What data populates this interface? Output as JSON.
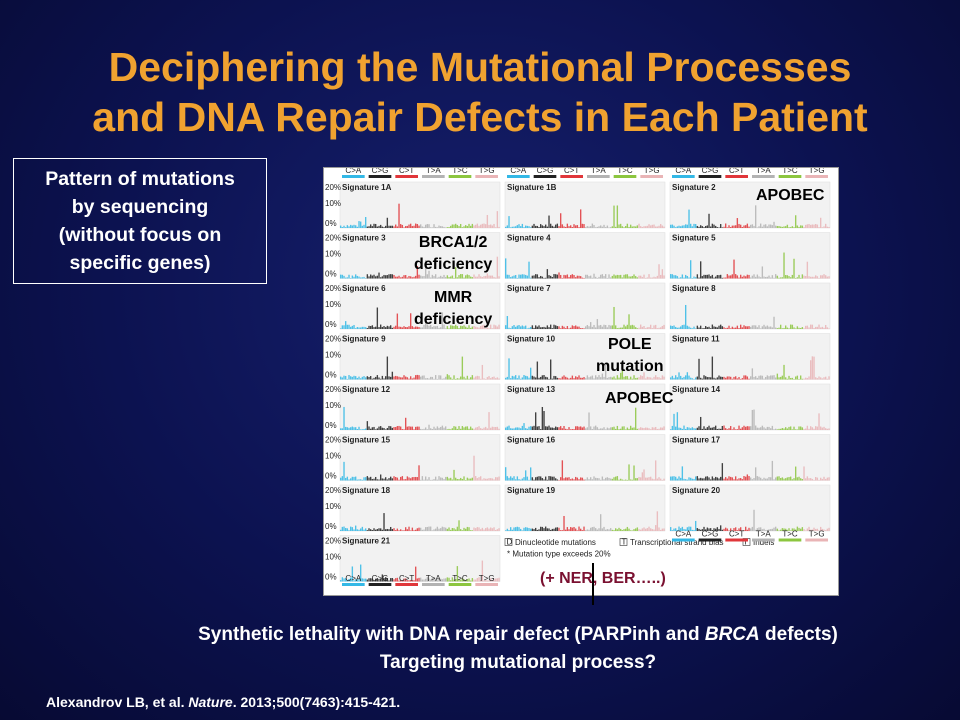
{
  "title": {
    "line1": "Deciphering the Mutational Processes",
    "line2": "and DNA Repair Defects in Each Patient"
  },
  "pattern_box": {
    "line1": "Pattern of mutations",
    "line2": "by sequencing",
    "line3": "(without focus on",
    "line4": "specific genes)"
  },
  "figure": {
    "mutation_classes": [
      "C>A",
      "C>G",
      "C>T",
      "T>A",
      "T>C",
      "T>G"
    ],
    "class_colors": [
      "#33b8e6",
      "#222222",
      "#e0363a",
      "#b3b3b3",
      "#8cc63f",
      "#e9b4b6"
    ],
    "y_ticks": [
      "20%",
      "10%",
      "0%"
    ],
    "signatures": [
      {
        "label": "Signature 1A",
        "tags": []
      },
      {
        "label": "Signature 1B",
        "tags": []
      },
      {
        "label": "Signature 2",
        "tags": []
      },
      {
        "label": "Signature 3",
        "tags": [
          "I"
        ]
      },
      {
        "label": "Signature 4",
        "tags": [
          "D",
          "T"
        ]
      },
      {
        "label": "Signature 5",
        "tags": [
          "D",
          "T"
        ]
      },
      {
        "label": "Signature 6",
        "tags": [
          "D"
        ]
      },
      {
        "label": "Signature 7",
        "tags": [
          "D",
          "T"
        ]
      },
      {
        "label": "Signature 8",
        "tags": [
          "T"
        ]
      },
      {
        "label": "Signature 9",
        "tags": []
      },
      {
        "label": "Signature 10",
        "tags": [
          "T"
        ]
      },
      {
        "label": "Signature 11",
        "tags": []
      },
      {
        "label": "Signature 12",
        "tags": [
          "T"
        ]
      },
      {
        "label": "Signature 13",
        "tags": []
      },
      {
        "label": "Signature 14",
        "tags": []
      },
      {
        "label": "Signature 15",
        "tags": [
          "I"
        ]
      },
      {
        "label": "Signature 16",
        "tags": [
          "T"
        ]
      },
      {
        "label": "Signature 17",
        "tags": []
      },
      {
        "label": "Signature 18",
        "tags": []
      },
      {
        "label": "Signature 19",
        "tags": []
      },
      {
        "label": "Signature 20",
        "tags": []
      },
      {
        "label": "Signature 21",
        "tags": []
      }
    ],
    "legend": {
      "dinucleotide": "Dinucleotide mutations",
      "strand_bias": "Transcriptional strand bias",
      "indels": "Indels",
      "exceeds": "* Mutation type exceeds 20%",
      "dinucleotide_tag": "D",
      "strand_tag": "T",
      "indel_tag": "I"
    }
  },
  "annotations": {
    "apobec_top": "APOBEC",
    "brca_line1": "BRCA1/2",
    "brca_line2": "deficiency",
    "mmr_line1": "MMR",
    "mmr_line2": "deficiency",
    "pole_line1": "POLE",
    "pole_line2": "mutation",
    "apobec_mid": "APOBEC",
    "ner": "(+ NER, BER…..)"
  },
  "bottom": {
    "line1_pre": "Synthetic lethality with DNA repair defect (PARPinh and ",
    "line1_italic": "BRCA",
    "line1_post": " defects)",
    "line2": "Targeting mutational process?"
  },
  "citation": {
    "authors": "Alexandrov LB, et al. ",
    "journal": "Nature",
    "details": ". 2013;500(7463):415-421."
  }
}
